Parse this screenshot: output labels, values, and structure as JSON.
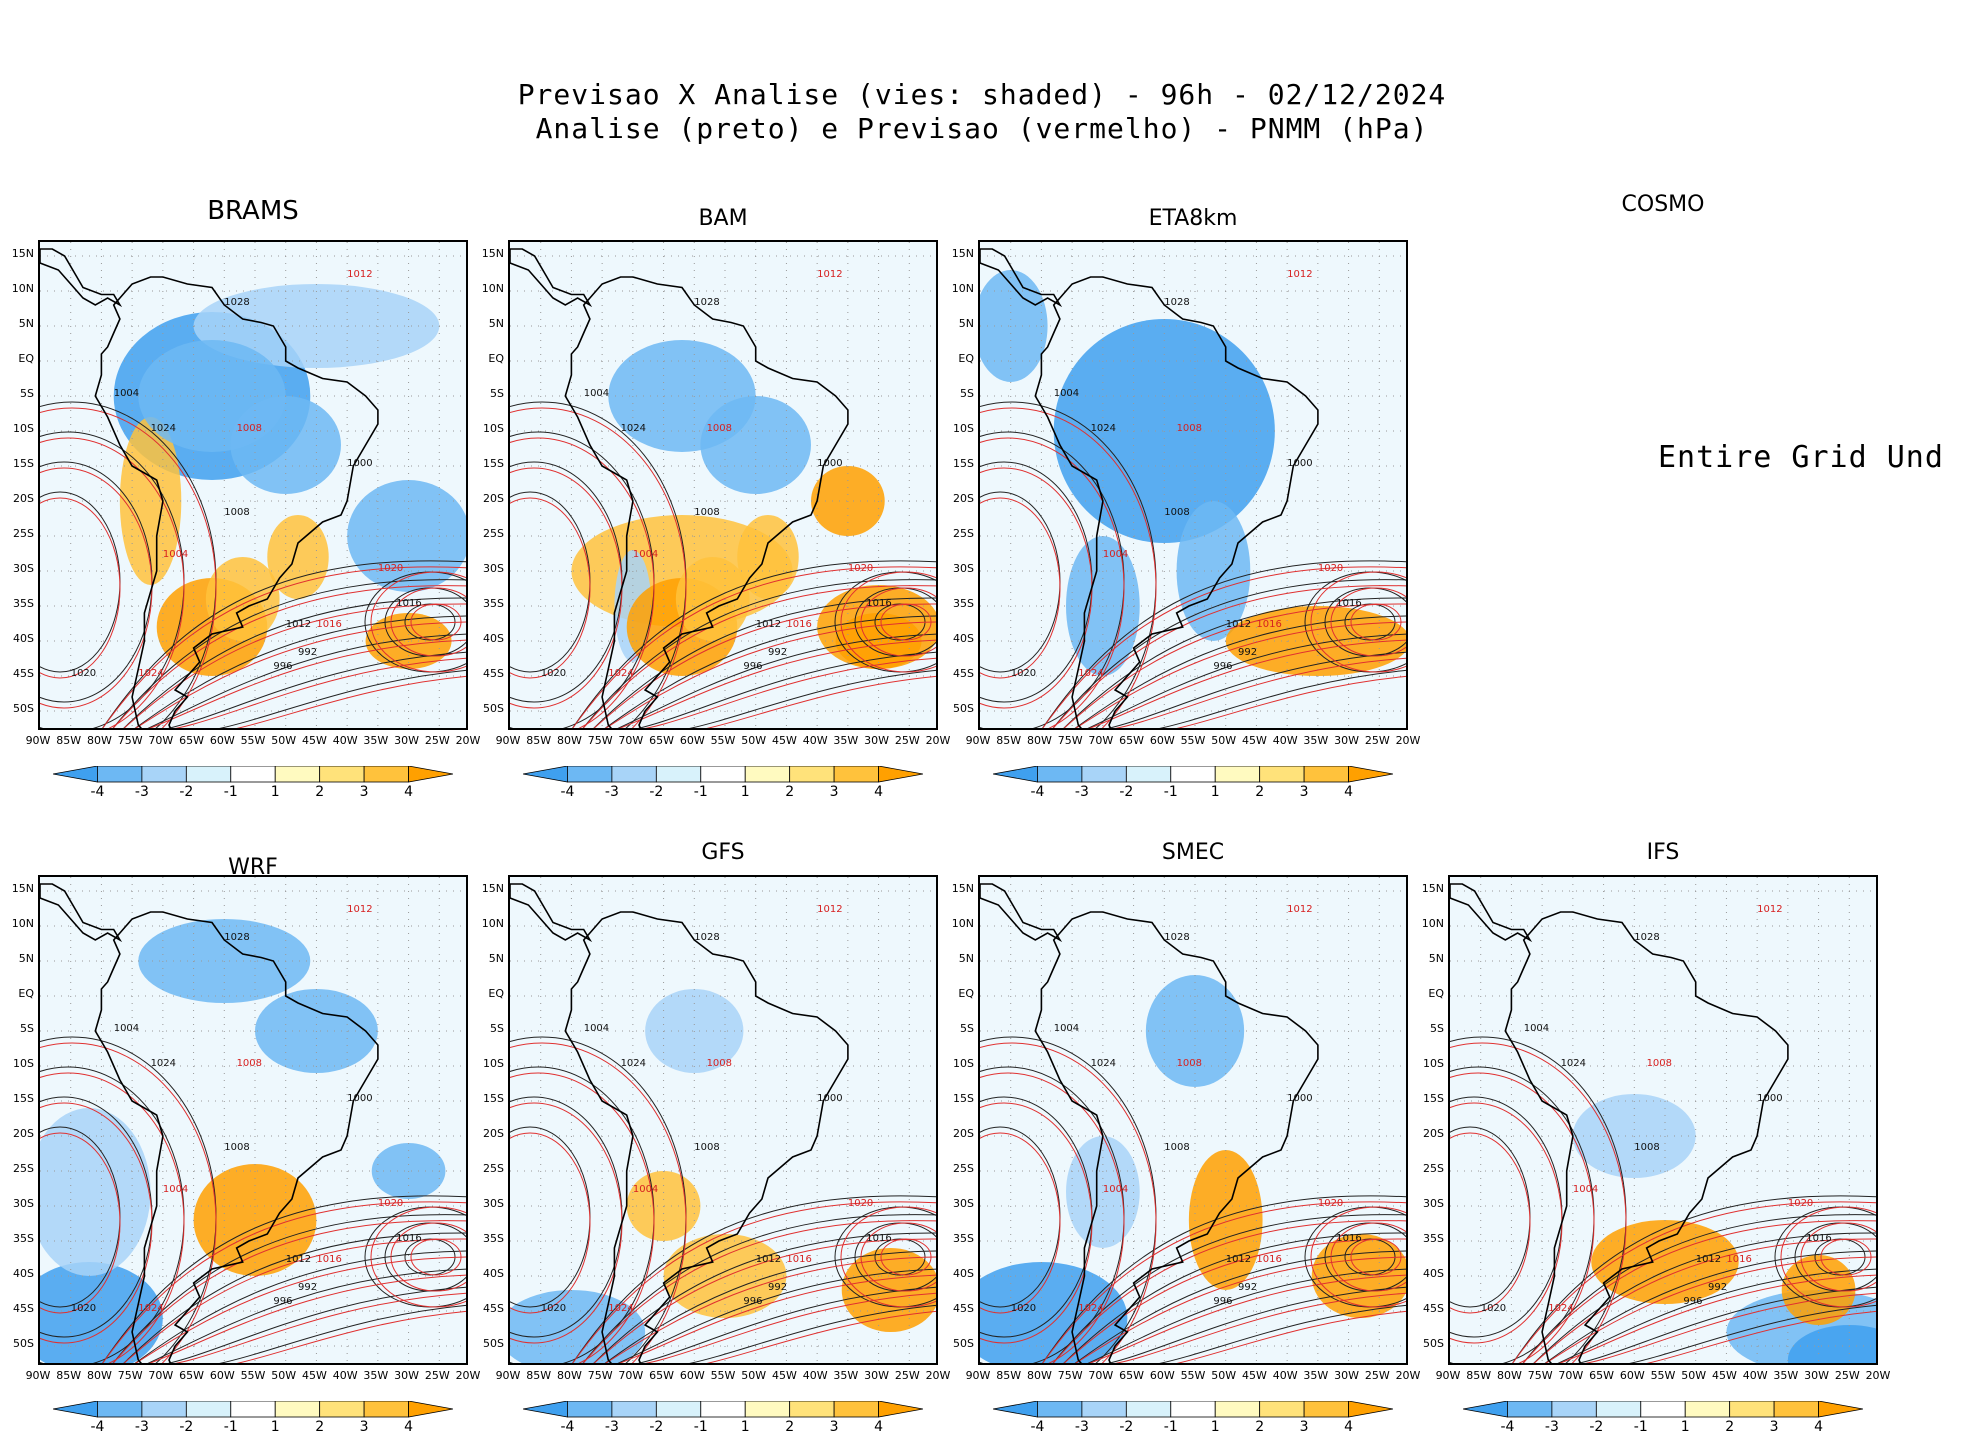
{
  "title": {
    "line1": "Previsao X Analise (vies: shaded) - 96h - 02/12/2024",
    "line2": "Analise (preto) e Previsao (vermelho) - PNMM (hPa)"
  },
  "panels": [
    {
      "name": "BRAMS",
      "status": "plotted"
    },
    {
      "name": "BAM",
      "status": "plotted"
    },
    {
      "name": "ETA8km",
      "status": "plotted"
    },
    {
      "name": "COSMO",
      "status": "Entire Grid Und"
    },
    {
      "name": "WRF",
      "status": "plotted"
    },
    {
      "name": "GFS",
      "status": "plotted"
    },
    {
      "name": "SMEC",
      "status": "plotted"
    },
    {
      "name": "IFS",
      "status": "plotted"
    }
  ],
  "axes": {
    "y_ticks": [
      "15N",
      "10N",
      "5N",
      "EQ",
      "5S",
      "10S",
      "15S",
      "20S",
      "25S",
      "30S",
      "35S",
      "40S",
      "45S",
      "50S"
    ],
    "x_ticks": [
      "90W",
      "85W",
      "80W",
      "75W",
      "70W",
      "65W",
      "60W",
      "55W",
      "50W",
      "45W",
      "40W",
      "35W",
      "30W",
      "25W",
      "20W"
    ]
  },
  "colorbar": {
    "labels": [
      "-4",
      "-3",
      "-2",
      "-1",
      "1",
      "2",
      "3",
      "4"
    ],
    "colors": [
      "#3fa0ef",
      "#6db8f3",
      "#a8d4f8",
      "#d8f2fb",
      "#ffffff",
      "#fffac0",
      "#ffe27a",
      "#ffc23c",
      "#ffa000"
    ]
  },
  "contour_labels": {
    "black": [
      "1004",
      "1008",
      "1012",
      "1016",
      "1020",
      "1024",
      "1028",
      "992",
      "996",
      "1000"
    ],
    "red": [
      "1004",
      "1008",
      "1012",
      "1016",
      "1020",
      "1024"
    ]
  }
}
